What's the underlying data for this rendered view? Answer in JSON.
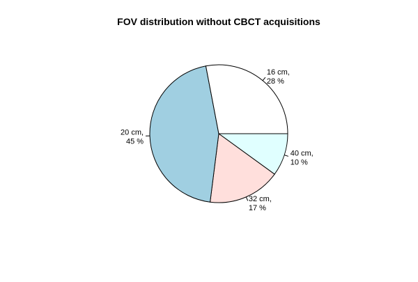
{
  "chart_data": {
    "type": "pie",
    "title": "FOV distribution without CBCT acquisitions",
    "slices": [
      {
        "label_line1": "40 cm,",
        "label_line2": "10 %",
        "value": 10,
        "color": "#e0ffff"
      },
      {
        "label_line1": "32 cm,",
        "label_line2": "17 %",
        "value": 17,
        "color": "#ffdfdc"
      },
      {
        "label_line1": "20 cm,",
        "label_line2": "45 %",
        "value": 45,
        "color": "#a0cfe1"
      },
      {
        "label_line1": "16 cm,",
        "label_line2": "28 %",
        "value": 28,
        "color": "#ffffff"
      }
    ],
    "start_angle_deg": 0,
    "direction": "clockwise"
  }
}
